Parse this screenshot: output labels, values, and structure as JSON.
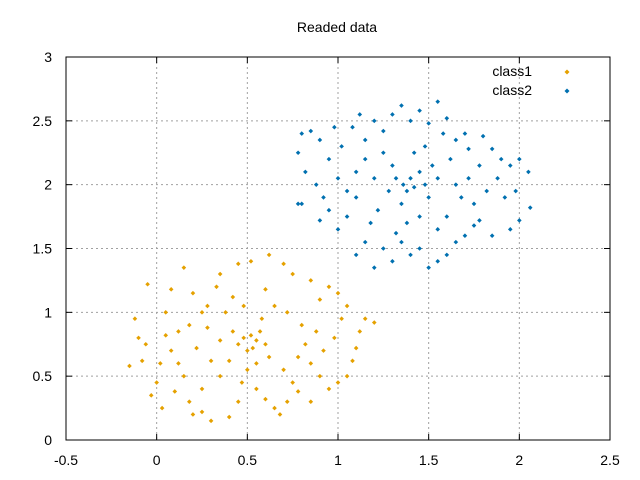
{
  "chart_data": {
    "type": "scatter",
    "title": "Readed data",
    "xlabel": "",
    "ylabel": "",
    "xlim": [
      -0.5,
      2.5
    ],
    "ylim": [
      0,
      3
    ],
    "x_ticks": [
      "-0.5",
      "0",
      "0.5",
      "1",
      "1.5",
      "2",
      "2.5"
    ],
    "y_ticks": [
      "0",
      "0.5",
      "1",
      "1.5",
      "2",
      "2.5",
      "3"
    ],
    "grid": true,
    "legend": "top-right",
    "series": [
      {
        "name": "class1",
        "color": "#e5a100",
        "points": [
          [
            0.08,
            1.18
          ],
          [
            -0.05,
            1.22
          ],
          [
            -0.12,
            0.95
          ],
          [
            -0.06,
            0.75
          ],
          [
            -0.08,
            0.62
          ],
          [
            0.02,
            0.6
          ],
          [
            0.05,
            0.82
          ],
          [
            0.12,
            0.6
          ],
          [
            0.15,
            0.5
          ],
          [
            0.1,
            0.38
          ],
          [
            0.03,
            0.25
          ],
          [
            -0.03,
            0.35
          ],
          [
            0.2,
            0.2
          ],
          [
            0.25,
            0.22
          ],
          [
            0.3,
            0.15
          ],
          [
            0.4,
            0.18
          ],
          [
            0.45,
            0.3
          ],
          [
            0.35,
            0.5
          ],
          [
            0.3,
            0.62
          ],
          [
            0.22,
            0.72
          ],
          [
            0.18,
            0.9
          ],
          [
            0.25,
            1.0
          ],
          [
            0.2,
            1.15
          ],
          [
            0.28,
            1.05
          ],
          [
            0.33,
            1.2
          ],
          [
            0.38,
            1.0
          ],
          [
            0.42,
            0.85
          ],
          [
            0.45,
            0.75
          ],
          [
            0.48,
            0.8
          ],
          [
            0.5,
            0.7
          ],
          [
            0.52,
            0.82
          ],
          [
            0.55,
            0.78
          ],
          [
            0.53,
            0.72
          ],
          [
            0.57,
            0.85
          ],
          [
            0.6,
            0.75
          ],
          [
            0.62,
            0.65
          ],
          [
            0.5,
            0.55
          ],
          [
            0.47,
            0.45
          ],
          [
            0.55,
            0.4
          ],
          [
            0.6,
            0.32
          ],
          [
            0.65,
            0.25
          ],
          [
            0.68,
            0.2
          ],
          [
            0.72,
            0.3
          ],
          [
            0.75,
            0.45
          ],
          [
            0.7,
            0.55
          ],
          [
            0.78,
            0.65
          ],
          [
            0.82,
            0.75
          ],
          [
            0.85,
            0.6
          ],
          [
            0.9,
            0.5
          ],
          [
            0.95,
            0.4
          ],
          [
            1.0,
            0.45
          ],
          [
            1.05,
            0.5
          ],
          [
            1.08,
            0.62
          ],
          [
            1.1,
            0.72
          ],
          [
            1.12,
            0.85
          ],
          [
            1.15,
            0.95
          ],
          [
            1.2,
            0.92
          ],
          [
            1.05,
            1.05
          ],
          [
            1.0,
            1.15
          ],
          [
            0.95,
            1.2
          ],
          [
            0.9,
            1.1
          ],
          [
            0.85,
            1.25
          ],
          [
            0.75,
            1.3
          ],
          [
            0.7,
            1.38
          ],
          [
            0.62,
            1.45
          ],
          [
            0.52,
            1.4
          ],
          [
            0.45,
            1.38
          ],
          [
            0.35,
            1.3
          ],
          [
            0.15,
            1.35
          ],
          [
            0.6,
            1.18
          ],
          [
            0.65,
            1.05
          ],
          [
            0.72,
            1.0
          ],
          [
            0.4,
            0.62
          ],
          [
            0.35,
            0.78
          ],
          [
            0.28,
            0.88
          ],
          [
            0.12,
            0.85
          ],
          [
            0.08,
            0.7
          ],
          [
            0.0,
            0.45
          ],
          [
            0.55,
            0.6
          ],
          [
            0.58,
            0.95
          ],
          [
            0.48,
            1.05
          ],
          [
            0.42,
            1.12
          ],
          [
            0.8,
            0.9
          ],
          [
            0.88,
            0.85
          ],
          [
            0.92,
            0.7
          ],
          [
            0.98,
            0.8
          ],
          [
            1.02,
            0.95
          ],
          [
            0.78,
            0.38
          ],
          [
            0.85,
            0.3
          ],
          [
            0.25,
            0.4
          ],
          [
            0.18,
            0.3
          ],
          [
            -0.15,
            0.58
          ],
          [
            -0.1,
            0.8
          ],
          [
            0.05,
            1.0
          ]
        ]
      },
      {
        "name": "class2",
        "color": "#0070b0",
        "points": [
          [
            0.8,
            2.4
          ],
          [
            0.85,
            2.42
          ],
          [
            0.9,
            2.35
          ],
          [
            0.78,
            2.25
          ],
          [
            0.82,
            2.1
          ],
          [
            0.88,
            2.0
          ],
          [
            0.8,
            1.85
          ],
          [
            0.78,
            1.85
          ],
          [
            0.9,
            1.72
          ],
          [
            0.95,
            1.8
          ],
          [
            1.0,
            1.65
          ],
          [
            1.05,
            1.75
          ],
          [
            1.1,
            1.9
          ],
          [
            1.0,
            2.05
          ],
          [
            0.95,
            2.2
          ],
          [
            1.02,
            2.3
          ],
          [
            1.08,
            2.45
          ],
          [
            1.15,
            2.35
          ],
          [
            1.2,
            2.5
          ],
          [
            1.25,
            2.42
          ],
          [
            1.3,
            2.55
          ],
          [
            1.35,
            2.62
          ],
          [
            1.4,
            2.5
          ],
          [
            1.45,
            2.58
          ],
          [
            1.5,
            2.48
          ],
          [
            1.55,
            2.65
          ],
          [
            1.6,
            2.52
          ],
          [
            1.58,
            2.4
          ],
          [
            1.7,
            2.4
          ],
          [
            1.8,
            2.38
          ],
          [
            1.85,
            2.28
          ],
          [
            1.9,
            2.2
          ],
          [
            1.95,
            2.15
          ],
          [
            2.0,
            2.2
          ],
          [
            2.05,
            2.1
          ],
          [
            2.06,
            1.82
          ],
          [
            2.0,
            1.72
          ],
          [
            1.95,
            1.65
          ],
          [
            1.85,
            1.6
          ],
          [
            1.78,
            1.72
          ],
          [
            1.7,
            1.6
          ],
          [
            1.65,
            1.55
          ],
          [
            1.6,
            1.45
          ],
          [
            1.55,
            1.4
          ],
          [
            1.5,
            1.35
          ],
          [
            1.45,
            1.5
          ],
          [
            1.4,
            1.45
          ],
          [
            1.35,
            1.55
          ],
          [
            1.3,
            1.4
          ],
          [
            1.25,
            1.5
          ],
          [
            1.2,
            1.35
          ],
          [
            1.15,
            1.55
          ],
          [
            1.1,
            1.45
          ],
          [
            1.18,
            1.7
          ],
          [
            1.22,
            1.8
          ],
          [
            1.28,
            1.95
          ],
          [
            1.32,
            2.05
          ],
          [
            1.36,
            2.0
          ],
          [
            1.38,
            1.95
          ],
          [
            1.4,
            2.05
          ],
          [
            1.42,
            1.98
          ],
          [
            1.45,
            2.1
          ],
          [
            1.48,
            2.0
          ],
          [
            1.5,
            1.9
          ],
          [
            1.52,
            2.15
          ],
          [
            1.55,
            2.05
          ],
          [
            1.35,
            1.85
          ],
          [
            1.3,
            2.15
          ],
          [
            1.25,
            2.25
          ],
          [
            1.42,
            2.25
          ],
          [
            1.48,
            2.3
          ],
          [
            1.62,
            2.2
          ],
          [
            1.65,
            2.0
          ],
          [
            1.68,
            1.9
          ],
          [
            1.72,
            2.05
          ],
          [
            1.75,
            1.85
          ],
          [
            1.82,
            1.95
          ],
          [
            1.88,
            2.05
          ],
          [
            1.92,
            1.9
          ],
          [
            1.1,
            2.1
          ],
          [
            1.05,
            1.95
          ],
          [
            1.15,
            2.2
          ],
          [
            1.2,
            2.05
          ],
          [
            1.6,
            1.75
          ],
          [
            1.55,
            1.65
          ],
          [
            1.45,
            1.75
          ],
          [
            1.38,
            1.7
          ],
          [
            1.32,
            1.62
          ],
          [
            1.78,
            2.15
          ],
          [
            1.72,
            2.28
          ],
          [
            1.65,
            2.35
          ],
          [
            0.92,
            1.9
          ],
          [
            0.98,
            2.45
          ],
          [
            1.12,
            2.55
          ],
          [
            1.75,
            1.68
          ],
          [
            1.98,
            1.95
          ]
        ]
      }
    ]
  }
}
